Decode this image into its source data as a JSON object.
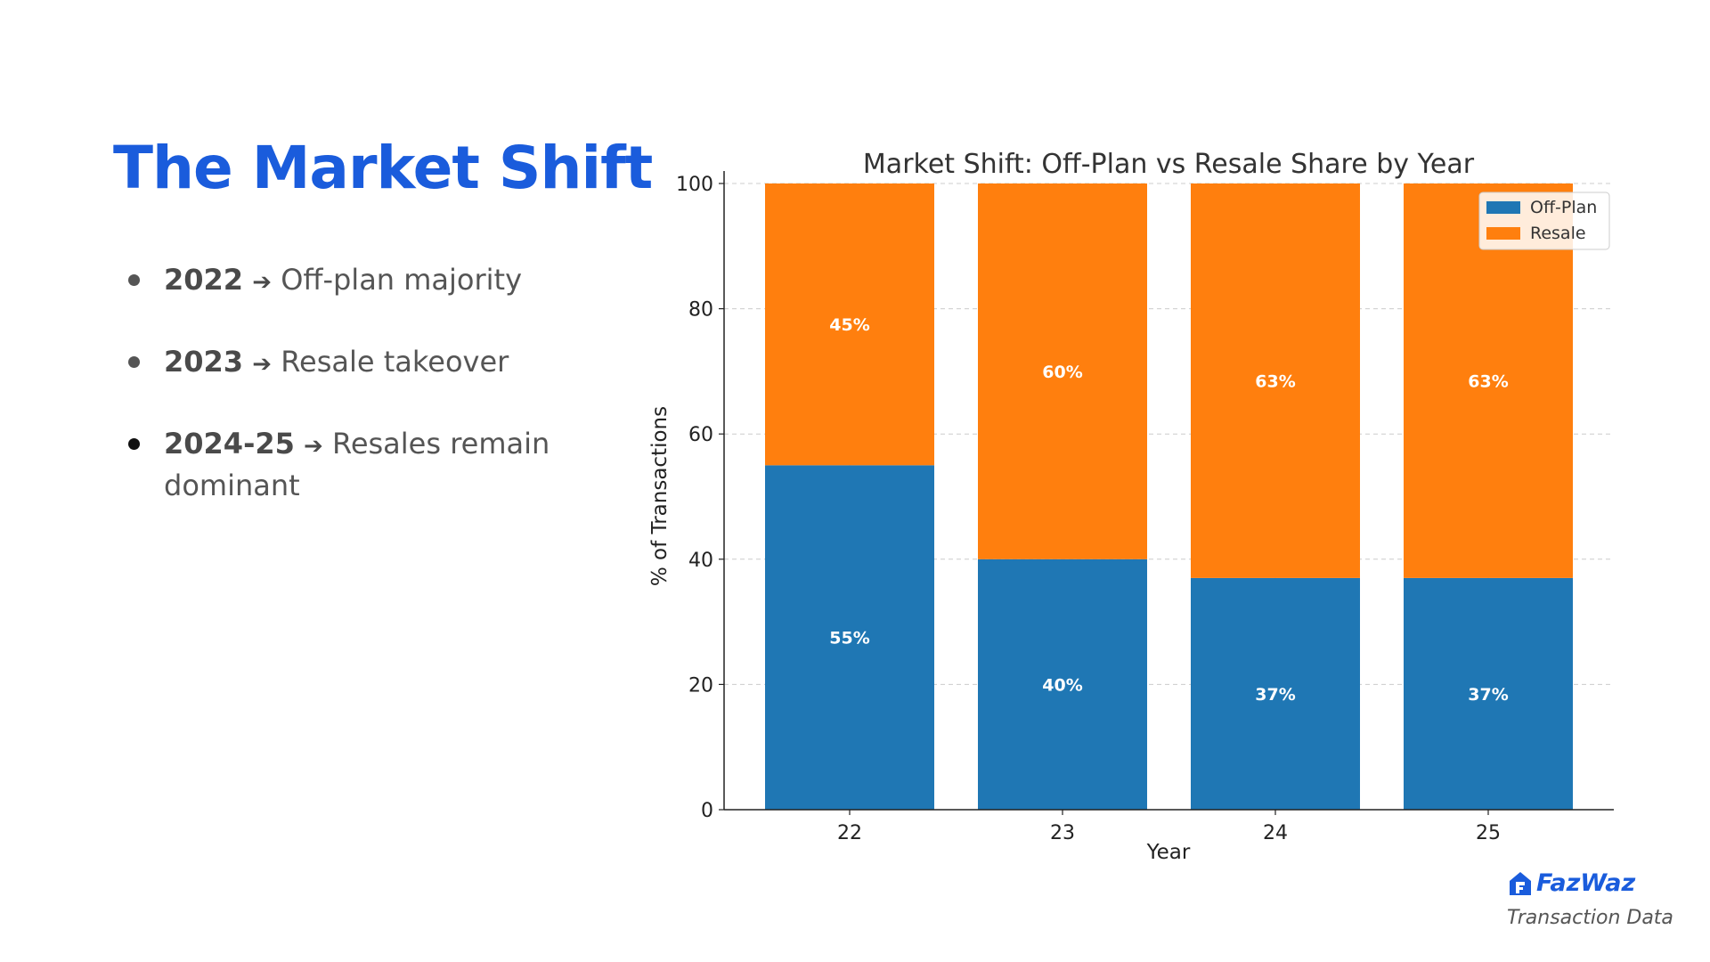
{
  "slide": {
    "title": "The Market Shift",
    "bullets": [
      {
        "year": "2022",
        "arrow": "➔",
        "text": "Off-plan majority"
      },
      {
        "year": "2023",
        "arrow": "➔",
        "text": "Resale takeover"
      },
      {
        "year": "2024-25",
        "arrow": "➔",
        "text": "Resales remain dominant"
      }
    ],
    "logo_text": "FazWaz",
    "source_label": "Transaction Data"
  },
  "chart_data": {
    "type": "bar",
    "stacked": true,
    "title": "Market Shift: Off-Plan vs Resale Share by Year",
    "xlabel": "Year",
    "ylabel": "% of Transactions",
    "categories": [
      "22",
      "23",
      "24",
      "25"
    ],
    "series": [
      {
        "name": "Off-Plan",
        "color": "#1f77b4",
        "values": [
          55,
          40,
          37,
          37
        ],
        "labels": [
          "55%",
          "40%",
          "37%",
          "37%"
        ]
      },
      {
        "name": "Resale",
        "color": "#ff7f0e",
        "values": [
          45,
          60,
          63,
          63
        ],
        "labels": [
          "45%",
          "60%",
          "63%",
          "63%"
        ]
      }
    ],
    "ylim": [
      0,
      100
    ],
    "yticks": [
      0,
      20,
      40,
      60,
      80,
      100
    ],
    "grid": true,
    "legend": "top-right"
  }
}
